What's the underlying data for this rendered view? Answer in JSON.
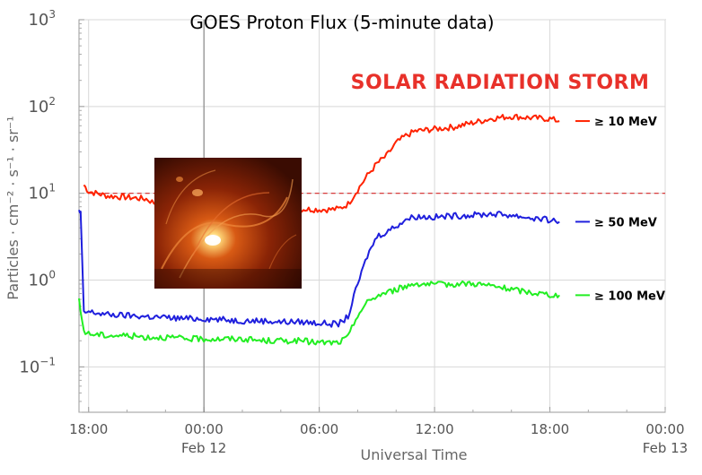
{
  "chart_data": {
    "type": "line",
    "title": "GOES Proton Flux (5-minute data)",
    "xlabel": "Universal Time",
    "ylabel": "Particles · cm⁻² · s⁻¹ · sr⁻¹",
    "y_scale": "log",
    "ylim": [
      0.03,
      1000
    ],
    "y_ticks": [
      {
        "value": 1000,
        "base": "10",
        "exp": "3"
      },
      {
        "value": 100,
        "base": "10",
        "exp": "2"
      },
      {
        "value": 10,
        "base": "10",
        "exp": "1"
      },
      {
        "value": 1,
        "base": "10",
        "exp": "0"
      },
      {
        "value": 0.1,
        "base": "10",
        "exp": "−1"
      }
    ],
    "x_ticks": [
      {
        "time": "Feb 11 18:00",
        "label": "18:00",
        "date": ""
      },
      {
        "time": "Feb 12 00:00",
        "label": "00:00",
        "date": "Feb 12"
      },
      {
        "time": "Feb 12 06:00",
        "label": "06:00",
        "date": ""
      },
      {
        "time": "Feb 12 12:00",
        "label": "12:00",
        "date": ""
      },
      {
        "time": "Feb 12 18:00",
        "label": "18:00",
        "date": ""
      },
      {
        "time": "Feb 13 00:00",
        "label": "00:00",
        "date": "Feb 13"
      }
    ],
    "xlim": [
      "Feb 11 17:30",
      "Feb 13 00:00"
    ],
    "grid": true,
    "marker_line": {
      "time": "Feb 12 00:00"
    },
    "threshold": {
      "value": 10,
      "style": "dashed",
      "color": "#d62728"
    },
    "annotation": "SOLAR RADIATION STORM",
    "legend_placement": "right, beside line ends",
    "series": [
      {
        "name": "≥ 10 MeV",
        "color": "#ff2200",
        "points": [
          [
            "Feb 11 17:45",
            12.5
          ],
          [
            "Feb 11 18:00",
            10.5
          ],
          [
            "Feb 11 19:00",
            9.3
          ],
          [
            "Feb 11 20:00",
            9.0
          ],
          [
            "Feb 11 21:00",
            8.6
          ],
          [
            "Feb 11 21:30",
            7.6
          ],
          [
            "Feb 11 22:00",
            7.4
          ],
          [
            "Feb 11 23:00",
            7.2
          ],
          [
            "Feb 12 00:00",
            7.0
          ],
          [
            "Feb 12 01:00",
            6.9
          ],
          [
            "Feb 12 02:00",
            6.8
          ],
          [
            "Feb 12 03:00",
            6.7
          ],
          [
            "Feb 12 04:00",
            6.7
          ],
          [
            "Feb 12 05:00",
            6.6
          ],
          [
            "Feb 12 06:00",
            6.5
          ],
          [
            "Feb 12 06:30",
            6.5
          ],
          [
            "Feb 12 07:00",
            6.6
          ],
          [
            "Feb 12 07:30",
            7.5
          ],
          [
            "Feb 12 08:00",
            11
          ],
          [
            "Feb 12 08:30",
            16
          ],
          [
            "Feb 12 09:00",
            22
          ],
          [
            "Feb 12 09:30",
            27
          ],
          [
            "Feb 12 10:00",
            38
          ],
          [
            "Feb 12 10:30",
            46
          ],
          [
            "Feb 12 11:00",
            52
          ],
          [
            "Feb 12 12:00",
            55
          ],
          [
            "Feb 12 13:00",
            58
          ],
          [
            "Feb 12 14:00",
            65
          ],
          [
            "Feb 12 15:00",
            73
          ],
          [
            "Feb 12 16:00",
            77
          ],
          [
            "Feb 12 17:00",
            74
          ],
          [
            "Feb 12 18:00",
            72
          ],
          [
            "Feb 12 18:30",
            68
          ]
        ]
      },
      {
        "name": "≥ 50 MeV",
        "color": "#1f1fdd",
        "points": [
          [
            "Feb 11 17:30",
            6.2
          ],
          [
            "Feb 11 17:35",
            5.9
          ],
          [
            "Feb 11 17:45",
            0.42
          ],
          [
            "Feb 11 18:00",
            0.43
          ],
          [
            "Feb 11 19:00",
            0.4
          ],
          [
            "Feb 11 20:00",
            0.39
          ],
          [
            "Feb 11 21:00",
            0.38
          ],
          [
            "Feb 11 22:00",
            0.37
          ],
          [
            "Feb 11 23:00",
            0.36
          ],
          [
            "Feb 12 00:00",
            0.36
          ],
          [
            "Feb 12 01:00",
            0.35
          ],
          [
            "Feb 12 02:00",
            0.34
          ],
          [
            "Feb 12 03:00",
            0.34
          ],
          [
            "Feb 12 04:00",
            0.33
          ],
          [
            "Feb 12 05:00",
            0.33
          ],
          [
            "Feb 12 06:00",
            0.32
          ],
          [
            "Feb 12 07:00",
            0.31
          ],
          [
            "Feb 12 07:30",
            0.38
          ],
          [
            "Feb 12 08:00",
            0.9
          ],
          [
            "Feb 12 08:30",
            1.9
          ],
          [
            "Feb 12 09:00",
            3.2
          ],
          [
            "Feb 12 09:30",
            3.6
          ],
          [
            "Feb 12 10:00",
            4.2
          ],
          [
            "Feb 12 10:30",
            5.0
          ],
          [
            "Feb 12 11:00",
            5.4
          ],
          [
            "Feb 12 12:00",
            5.3
          ],
          [
            "Feb 12 13:00",
            5.5
          ],
          [
            "Feb 12 14:00",
            5.6
          ],
          [
            "Feb 12 15:00",
            5.8
          ],
          [
            "Feb 12 16:00",
            5.6
          ],
          [
            "Feb 12 17:00",
            5.2
          ],
          [
            "Feb 12 18:00",
            4.9
          ],
          [
            "Feb 12 18:30",
            4.7
          ]
        ]
      },
      {
        "name": "≥ 100 MeV",
        "color": "#22ee22",
        "points": [
          [
            "Feb 11 17:30",
            0.57
          ],
          [
            "Feb 11 17:45",
            0.26
          ],
          [
            "Feb 11 18:00",
            0.24
          ],
          [
            "Feb 11 19:00",
            0.23
          ],
          [
            "Feb 11 20:00",
            0.23
          ],
          [
            "Feb 11 21:00",
            0.22
          ],
          [
            "Feb 11 22:00",
            0.22
          ],
          [
            "Feb 11 23:00",
            0.21
          ],
          [
            "Feb 12 00:00",
            0.21
          ],
          [
            "Feb 12 01:00",
            0.21
          ],
          [
            "Feb 12 02:00",
            0.21
          ],
          [
            "Feb 12 03:00",
            0.2
          ],
          [
            "Feb 12 04:00",
            0.2
          ],
          [
            "Feb 12 05:00",
            0.2
          ],
          [
            "Feb 12 06:00",
            0.19
          ],
          [
            "Feb 12 07:00",
            0.19
          ],
          [
            "Feb 12 07:30",
            0.22
          ],
          [
            "Feb 12 08:00",
            0.4
          ],
          [
            "Feb 12 08:30",
            0.55
          ],
          [
            "Feb 12 09:00",
            0.66
          ],
          [
            "Feb 12 10:00",
            0.78
          ],
          [
            "Feb 12 11:00",
            0.92
          ],
          [
            "Feb 12 12:00",
            0.88
          ],
          [
            "Feb 12 13:00",
            0.9
          ],
          [
            "Feb 12 14:00",
            0.92
          ],
          [
            "Feb 12 15:00",
            0.85
          ],
          [
            "Feb 12 16:00",
            0.78
          ],
          [
            "Feb 12 17:00",
            0.72
          ],
          [
            "Feb 12 18:00",
            0.68
          ],
          [
            "Feb 12 18:30",
            0.67
          ]
        ]
      }
    ]
  }
}
